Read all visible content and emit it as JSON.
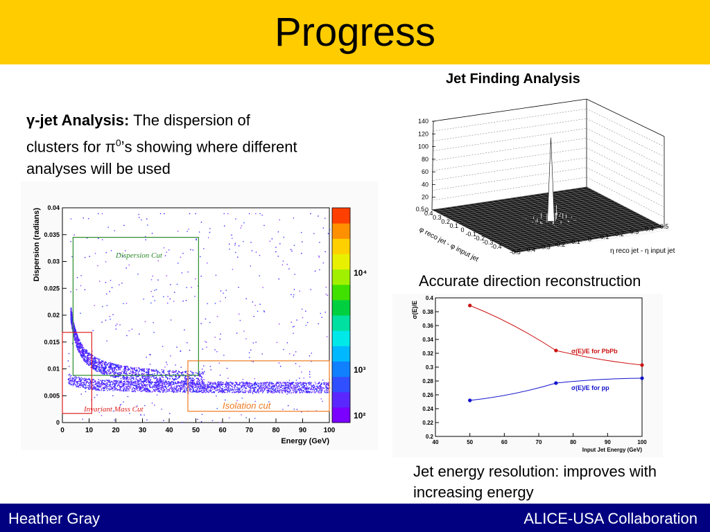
{
  "slide": {
    "title": "Progress",
    "footer_left": "Heather Gray",
    "footer_right": "ALICE-USA Collaboration"
  },
  "gamma_jet": {
    "heading": "γ-jet Analysis:",
    "text_before_sup": " The dispersion of clusters for π",
    "superscript": "0",
    "text_after_sup": "’s showing where different analyses will be used"
  },
  "jet_finding": {
    "title": "Jet Finding Analysis",
    "caption": "Accurate direction reconstruction"
  },
  "resolution": {
    "caption": "Jet energy resolution: improves with increasing energy"
  },
  "chart_data": [
    {
      "type": "heatmap",
      "xlabel": "Energy (GeV)",
      "ylabel": "Dispersion (radians)",
      "xlim": [
        0,
        100
      ],
      "ylim": [
        0,
        0.04
      ],
      "x_ticks": [
        "0",
        "10",
        "20",
        "30",
        "40",
        "50",
        "60",
        "70",
        "80",
        "90",
        "100"
      ],
      "y_ticks": [
        "0",
        "0.005",
        "0.01",
        "0.015",
        "0.02",
        "0.025",
        "0.03",
        "0.035",
        "0.04"
      ],
      "colorbar_ticks": [
        "10²",
        "10³",
        "10⁴"
      ],
      "colorbar_colors": [
        "#7a00ff",
        "#5a28ff",
        "#3050ff",
        "#1080ff",
        "#00b8ff",
        "#00e8e8",
        "#00e0a0",
        "#00d040",
        "#40e000",
        "#a0f000",
        "#e8f000",
        "#ffd000",
        "#ff9000",
        "#ff4000"
      ],
      "annotations": [
        {
          "label": "Dispersion Cut",
          "color": "#2a8a2a",
          "x": [
            4,
            51
          ],
          "y": [
            0.0088,
            0.0345
          ]
        },
        {
          "label": "Invariant Mass Cut",
          "color": "#dd2020",
          "x": [
            0,
            11
          ],
          "y": [
            0.0017,
            0.0168
          ]
        },
        {
          "label": "Isolation cut",
          "color": "#ee7a20",
          "x": [
            47,
            100
          ],
          "y": [
            0.0021,
            0.0115
          ]
        }
      ]
    },
    {
      "type": "surface",
      "title": "Jet Finding Analysis",
      "zlabel": "",
      "x_axis_label": "η reco jet - η input jet",
      "y_axis_label": "φ reco jet - φ input jet",
      "z_ticks": [
        "0",
        "20",
        "40",
        "60",
        "80",
        "100",
        "120",
        "140"
      ],
      "x_ticks": [
        "-0.5",
        "-0.4",
        "-0.3",
        "-0.2",
        "-0.1",
        "0",
        "0.1",
        "0.2",
        "0.3",
        "0.4",
        "0.5"
      ],
      "y_ticks": [
        "0.5",
        "0.4",
        "0.3",
        "0.2",
        "0.1",
        "0",
        "-0.1",
        "-0.2",
        "-0.3",
        "-0.4"
      ],
      "peak": {
        "x": 0,
        "y": 0,
        "z": 130
      }
    },
    {
      "type": "line",
      "xlabel": "Input Jet Energy (GeV)",
      "ylabel": "σ(E)/E",
      "xlim": [
        40,
        100
      ],
      "ylim": [
        0.2,
        0.4
      ],
      "x_ticks": [
        "40",
        "50",
        "60",
        "70",
        "80",
        "90",
        "100"
      ],
      "y_ticks": [
        "0.2",
        "0.22",
        "0.24",
        "0.26",
        "0.28",
        "0.3",
        "0.32",
        "0.34",
        "0.36",
        "0.38",
        "0.4"
      ],
      "series": [
        {
          "name": "σ(E)/E for PbPb",
          "color": "#cc1010",
          "x": [
            50,
            75,
            100
          ],
          "y": [
            0.389,
            0.324,
            0.303
          ]
        },
        {
          "name": "σ(E)/E for pp",
          "color": "#1010cc",
          "x": [
            50,
            75,
            100
          ],
          "y": [
            0.252,
            0.277,
            0.284
          ]
        }
      ]
    }
  ]
}
